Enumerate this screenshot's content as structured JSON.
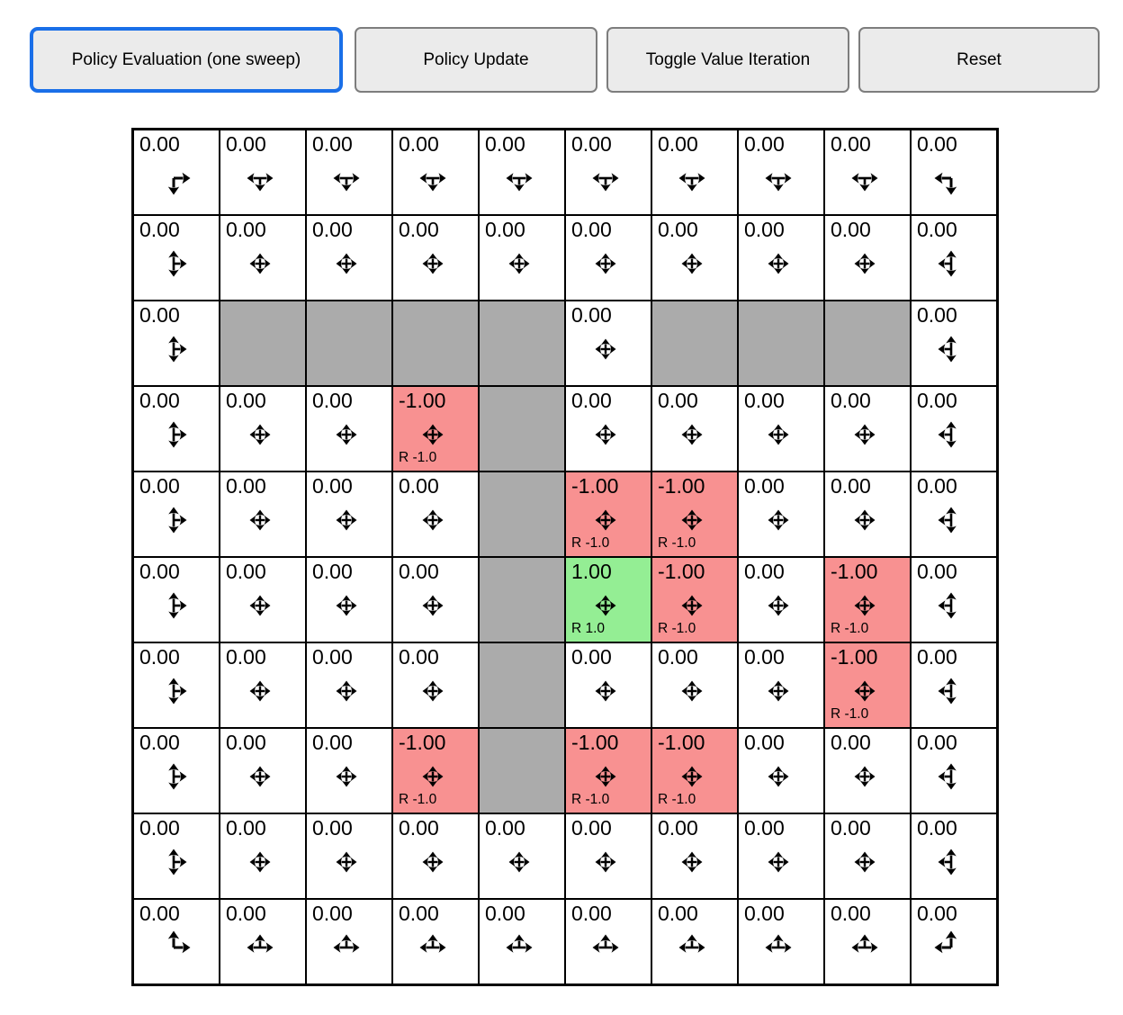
{
  "toolbar": {
    "buttons": [
      {
        "label": "Policy Evaluation (one sweep)",
        "active": true
      },
      {
        "label": "Policy Update",
        "active": false
      },
      {
        "label": "Toggle Value Iteration",
        "active": false
      },
      {
        "label": "Reset",
        "active": false
      }
    ]
  },
  "colors": {
    "wall": "#ababab",
    "negative_reward_bg": "#f89191",
    "positive_reward_bg": "#94ee94",
    "active_button_border": "#1a6fe8",
    "button_border": "#7d7d7d",
    "button_bg": "#ebebeb",
    "arrow": "#000000",
    "grid_line": "#000000"
  },
  "grid": {
    "rows": 10,
    "cols": 10,
    "cells": [
      [
        {
          "value": "0.00",
          "type": "normal",
          "arrows": [
            "down",
            "right"
          ]
        },
        {
          "value": "0.00",
          "type": "normal",
          "arrows": [
            "left",
            "down",
            "right"
          ]
        },
        {
          "value": "0.00",
          "type": "normal",
          "arrows": [
            "left",
            "down",
            "right"
          ]
        },
        {
          "value": "0.00",
          "type": "normal",
          "arrows": [
            "left",
            "down",
            "right"
          ]
        },
        {
          "value": "0.00",
          "type": "normal",
          "arrows": [
            "left",
            "down",
            "right"
          ]
        },
        {
          "value": "0.00",
          "type": "normal",
          "arrows": [
            "left",
            "down",
            "right"
          ]
        },
        {
          "value": "0.00",
          "type": "normal",
          "arrows": [
            "left",
            "down",
            "right"
          ]
        },
        {
          "value": "0.00",
          "type": "normal",
          "arrows": [
            "left",
            "down",
            "right"
          ]
        },
        {
          "value": "0.00",
          "type": "normal",
          "arrows": [
            "left",
            "down",
            "right"
          ]
        },
        {
          "value": "0.00",
          "type": "normal",
          "arrows": [
            "left",
            "down"
          ]
        }
      ],
      [
        {
          "value": "0.00",
          "type": "normal",
          "arrows": [
            "up",
            "down",
            "right"
          ]
        },
        {
          "value": "0.00",
          "type": "normal",
          "arrows": [
            "up",
            "down",
            "left",
            "right"
          ]
        },
        {
          "value": "0.00",
          "type": "normal",
          "arrows": [
            "up",
            "down",
            "left",
            "right"
          ]
        },
        {
          "value": "0.00",
          "type": "normal",
          "arrows": [
            "up",
            "down",
            "left",
            "right"
          ]
        },
        {
          "value": "0.00",
          "type": "normal",
          "arrows": [
            "up",
            "down",
            "left",
            "right"
          ]
        },
        {
          "value": "0.00",
          "type": "normal",
          "arrows": [
            "up",
            "down",
            "left",
            "right"
          ]
        },
        {
          "value": "0.00",
          "type": "normal",
          "arrows": [
            "up",
            "down",
            "left",
            "right"
          ]
        },
        {
          "value": "0.00",
          "type": "normal",
          "arrows": [
            "up",
            "down",
            "left",
            "right"
          ]
        },
        {
          "value": "0.00",
          "type": "normal",
          "arrows": [
            "up",
            "down",
            "left",
            "right"
          ]
        },
        {
          "value": "0.00",
          "type": "normal",
          "arrows": [
            "up",
            "down",
            "left"
          ]
        }
      ],
      [
        {
          "value": "0.00",
          "type": "normal",
          "arrows": [
            "up",
            "down",
            "right"
          ]
        },
        {
          "type": "wall"
        },
        {
          "type": "wall"
        },
        {
          "type": "wall"
        },
        {
          "type": "wall"
        },
        {
          "value": "0.00",
          "type": "normal",
          "arrows": [
            "up",
            "down",
            "left",
            "right"
          ]
        },
        {
          "type": "wall"
        },
        {
          "type": "wall"
        },
        {
          "type": "wall"
        },
        {
          "value": "0.00",
          "type": "normal",
          "arrows": [
            "up",
            "down",
            "left"
          ]
        }
      ],
      [
        {
          "value": "0.00",
          "type": "normal",
          "arrows": [
            "up",
            "down",
            "right"
          ]
        },
        {
          "value": "0.00",
          "type": "normal",
          "arrows": [
            "up",
            "down",
            "left",
            "right"
          ]
        },
        {
          "value": "0.00",
          "type": "normal",
          "arrows": [
            "up",
            "down",
            "left",
            "right"
          ]
        },
        {
          "value": "-1.00",
          "type": "reward-neg",
          "reward": "R -1.0",
          "arrows": [
            "up",
            "down",
            "left",
            "right"
          ]
        },
        {
          "type": "wall"
        },
        {
          "value": "0.00",
          "type": "normal",
          "arrows": [
            "up",
            "down",
            "left",
            "right"
          ]
        },
        {
          "value": "0.00",
          "type": "normal",
          "arrows": [
            "up",
            "down",
            "left",
            "right"
          ]
        },
        {
          "value": "0.00",
          "type": "normal",
          "arrows": [
            "up",
            "down",
            "left",
            "right"
          ]
        },
        {
          "value": "0.00",
          "type": "normal",
          "arrows": [
            "up",
            "down",
            "left",
            "right"
          ]
        },
        {
          "value": "0.00",
          "type": "normal",
          "arrows": [
            "up",
            "down",
            "left"
          ]
        }
      ],
      [
        {
          "value": "0.00",
          "type": "normal",
          "arrows": [
            "up",
            "down",
            "right"
          ]
        },
        {
          "value": "0.00",
          "type": "normal",
          "arrows": [
            "up",
            "down",
            "left",
            "right"
          ]
        },
        {
          "value": "0.00",
          "type": "normal",
          "arrows": [
            "up",
            "down",
            "left",
            "right"
          ]
        },
        {
          "value": "0.00",
          "type": "normal",
          "arrows": [
            "up",
            "down",
            "left",
            "right"
          ]
        },
        {
          "type": "wall"
        },
        {
          "value": "-1.00",
          "type": "reward-neg",
          "reward": "R -1.0",
          "arrows": [
            "up",
            "down",
            "left",
            "right"
          ]
        },
        {
          "value": "-1.00",
          "type": "reward-neg",
          "reward": "R -1.0",
          "arrows": [
            "up",
            "down",
            "left",
            "right"
          ]
        },
        {
          "value": "0.00",
          "type": "normal",
          "arrows": [
            "up",
            "down",
            "left",
            "right"
          ]
        },
        {
          "value": "0.00",
          "type": "normal",
          "arrows": [
            "up",
            "down",
            "left",
            "right"
          ]
        },
        {
          "value": "0.00",
          "type": "normal",
          "arrows": [
            "up",
            "down",
            "left"
          ]
        }
      ],
      [
        {
          "value": "0.00",
          "type": "normal",
          "arrows": [
            "up",
            "down",
            "right"
          ]
        },
        {
          "value": "0.00",
          "type": "normal",
          "arrows": [
            "up",
            "down",
            "left",
            "right"
          ]
        },
        {
          "value": "0.00",
          "type": "normal",
          "arrows": [
            "up",
            "down",
            "left",
            "right"
          ]
        },
        {
          "value": "0.00",
          "type": "normal",
          "arrows": [
            "up",
            "down",
            "left",
            "right"
          ]
        },
        {
          "type": "wall"
        },
        {
          "value": "1.00",
          "type": "reward-pos",
          "reward": "R 1.0",
          "arrows": [
            "up",
            "down",
            "left",
            "right"
          ]
        },
        {
          "value": "-1.00",
          "type": "reward-neg",
          "reward": "R -1.0",
          "arrows": [
            "up",
            "down",
            "left",
            "right"
          ]
        },
        {
          "value": "0.00",
          "type": "normal",
          "arrows": [
            "up",
            "down",
            "left",
            "right"
          ]
        },
        {
          "value": "-1.00",
          "type": "reward-neg",
          "reward": "R -1.0",
          "arrows": [
            "up",
            "down",
            "left",
            "right"
          ]
        },
        {
          "value": "0.00",
          "type": "normal",
          "arrows": [
            "up",
            "down",
            "left"
          ]
        }
      ],
      [
        {
          "value": "0.00",
          "type": "normal",
          "arrows": [
            "up",
            "down",
            "right"
          ]
        },
        {
          "value": "0.00",
          "type": "normal",
          "arrows": [
            "up",
            "down",
            "left",
            "right"
          ]
        },
        {
          "value": "0.00",
          "type": "normal",
          "arrows": [
            "up",
            "down",
            "left",
            "right"
          ]
        },
        {
          "value": "0.00",
          "type": "normal",
          "arrows": [
            "up",
            "down",
            "left",
            "right"
          ]
        },
        {
          "type": "wall"
        },
        {
          "value": "0.00",
          "type": "normal",
          "arrows": [
            "up",
            "down",
            "left",
            "right"
          ]
        },
        {
          "value": "0.00",
          "type": "normal",
          "arrows": [
            "up",
            "down",
            "left",
            "right"
          ]
        },
        {
          "value": "0.00",
          "type": "normal",
          "arrows": [
            "up",
            "down",
            "left",
            "right"
          ]
        },
        {
          "value": "-1.00",
          "type": "reward-neg",
          "reward": "R -1.0",
          "arrows": [
            "up",
            "down",
            "left",
            "right"
          ]
        },
        {
          "value": "0.00",
          "type": "normal",
          "arrows": [
            "up",
            "down",
            "left"
          ]
        }
      ],
      [
        {
          "value": "0.00",
          "type": "normal",
          "arrows": [
            "up",
            "down",
            "right"
          ]
        },
        {
          "value": "0.00",
          "type": "normal",
          "arrows": [
            "up",
            "down",
            "left",
            "right"
          ]
        },
        {
          "value": "0.00",
          "type": "normal",
          "arrows": [
            "up",
            "down",
            "left",
            "right"
          ]
        },
        {
          "value": "-1.00",
          "type": "reward-neg",
          "reward": "R -1.0",
          "arrows": [
            "up",
            "down",
            "left",
            "right"
          ]
        },
        {
          "type": "wall"
        },
        {
          "value": "-1.00",
          "type": "reward-neg",
          "reward": "R -1.0",
          "arrows": [
            "up",
            "down",
            "left",
            "right"
          ]
        },
        {
          "value": "-1.00",
          "type": "reward-neg",
          "reward": "R -1.0",
          "arrows": [
            "up",
            "down",
            "left",
            "right"
          ]
        },
        {
          "value": "0.00",
          "type": "normal",
          "arrows": [
            "up",
            "down",
            "left",
            "right"
          ]
        },
        {
          "value": "0.00",
          "type": "normal",
          "arrows": [
            "up",
            "down",
            "left",
            "right"
          ]
        },
        {
          "value": "0.00",
          "type": "normal",
          "arrows": [
            "up",
            "down",
            "left"
          ]
        }
      ],
      [
        {
          "value": "0.00",
          "type": "normal",
          "arrows": [
            "up",
            "down",
            "right"
          ]
        },
        {
          "value": "0.00",
          "type": "normal",
          "arrows": [
            "up",
            "down",
            "left",
            "right"
          ]
        },
        {
          "value": "0.00",
          "type": "normal",
          "arrows": [
            "up",
            "down",
            "left",
            "right"
          ]
        },
        {
          "value": "0.00",
          "type": "normal",
          "arrows": [
            "up",
            "down",
            "left",
            "right"
          ]
        },
        {
          "value": "0.00",
          "type": "normal",
          "arrows": [
            "up",
            "down",
            "left",
            "right"
          ]
        },
        {
          "value": "0.00",
          "type": "normal",
          "arrows": [
            "up",
            "down",
            "left",
            "right"
          ]
        },
        {
          "value": "0.00",
          "type": "normal",
          "arrows": [
            "up",
            "down",
            "left",
            "right"
          ]
        },
        {
          "value": "0.00",
          "type": "normal",
          "arrows": [
            "up",
            "down",
            "left",
            "right"
          ]
        },
        {
          "value": "0.00",
          "type": "normal",
          "arrows": [
            "up",
            "down",
            "left",
            "right"
          ]
        },
        {
          "value": "0.00",
          "type": "normal",
          "arrows": [
            "up",
            "down",
            "left"
          ]
        }
      ],
      [
        {
          "value": "0.00",
          "type": "normal",
          "arrows": [
            "up",
            "right"
          ]
        },
        {
          "value": "0.00",
          "type": "normal",
          "arrows": [
            "up",
            "left",
            "right"
          ]
        },
        {
          "value": "0.00",
          "type": "normal",
          "arrows": [
            "up",
            "left",
            "right"
          ]
        },
        {
          "value": "0.00",
          "type": "normal",
          "arrows": [
            "up",
            "left",
            "right"
          ]
        },
        {
          "value": "0.00",
          "type": "normal",
          "arrows": [
            "up",
            "left",
            "right"
          ]
        },
        {
          "value": "0.00",
          "type": "normal",
          "arrows": [
            "up",
            "left",
            "right"
          ]
        },
        {
          "value": "0.00",
          "type": "normal",
          "arrows": [
            "up",
            "left",
            "right"
          ]
        },
        {
          "value": "0.00",
          "type": "normal",
          "arrows": [
            "up",
            "left",
            "right"
          ]
        },
        {
          "value": "0.00",
          "type": "normal",
          "arrows": [
            "up",
            "left",
            "right"
          ]
        },
        {
          "value": "0.00",
          "type": "normal",
          "arrows": [
            "up",
            "left"
          ]
        }
      ]
    ]
  }
}
